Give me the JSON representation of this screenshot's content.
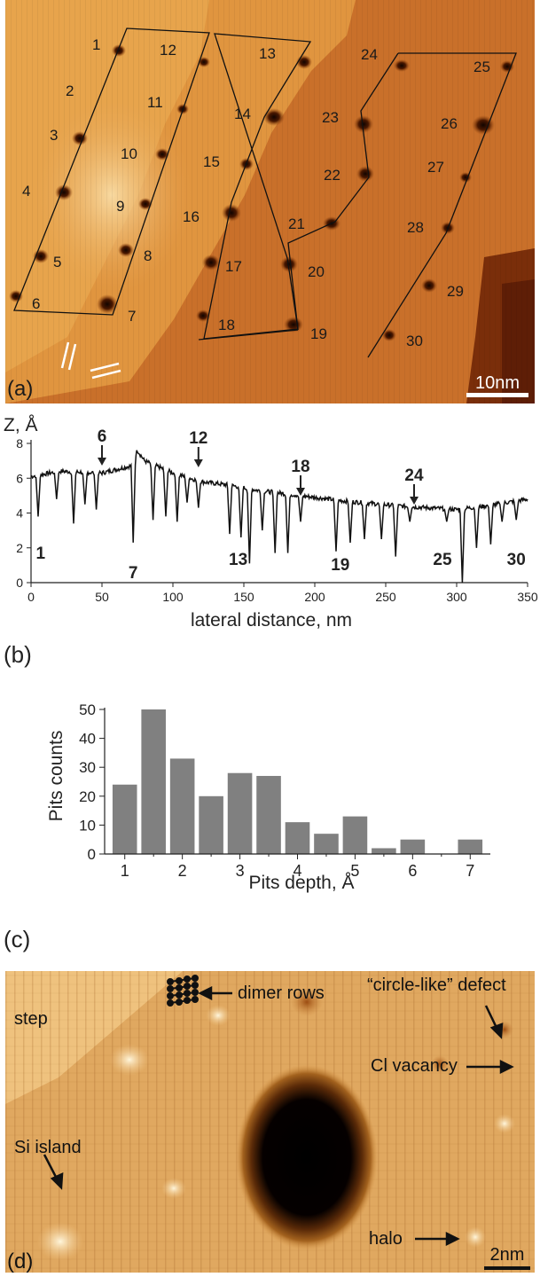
{
  "panel_a": {
    "label": "(a)",
    "scale_bar": "10nm",
    "pits": [
      "1",
      "2",
      "3",
      "4",
      "5",
      "6",
      "7",
      "8",
      "9",
      "10",
      "11",
      "12",
      "13",
      "14",
      "15",
      "16",
      "17",
      "18",
      "19",
      "20",
      "21",
      "22",
      "23",
      "24",
      "25",
      "26",
      "27",
      "28",
      "29",
      "30"
    ]
  },
  "panel_b": {
    "label": "(b)",
    "ylabel": "Z, Å",
    "xlabel": "lateral distance, nm",
    "arrow_labels": [
      "6",
      "12",
      "18",
      "24"
    ],
    "pit_labels": [
      "1",
      "7",
      "13",
      "19",
      "25",
      "30"
    ]
  },
  "panel_c": {
    "label": "(c)"
  },
  "panel_d": {
    "label": "(d)",
    "scale_bar": "2nm",
    "annotations": {
      "step": "step",
      "dimer_rows": "dimer rows",
      "circle_defect": "“circle-like” defect",
      "cl_vacancy": "Cl vacancy",
      "si_island": "Si island",
      "halo": "halo"
    }
  },
  "chart_data": [
    {
      "type": "line",
      "xlabel": "lateral distance, nm",
      "ylabel": "Z, Å",
      "xlim": [
        0,
        350
      ],
      "ylim": [
        0,
        8
      ],
      "xticks": [
        0,
        50,
        100,
        150,
        200,
        250,
        300,
        350
      ],
      "yticks": [
        0,
        2,
        4,
        6,
        8
      ],
      "x": [
        0,
        5,
        10,
        20,
        30,
        40,
        50,
        60,
        70,
        72,
        75,
        80,
        90,
        100,
        110,
        118,
        130,
        140,
        150,
        155,
        160,
        170,
        180,
        190,
        200,
        210,
        215,
        220,
        230,
        240,
        250,
        260,
        270,
        280,
        290,
        300,
        304,
        310,
        320,
        330,
        340,
        350
      ],
      "y": [
        6.1,
        4.0,
        6.3,
        6.5,
        3.5,
        6.6,
        6.3,
        6.5,
        6.8,
        2.3,
        7.8,
        7.2,
        6.6,
        6.3,
        6.0,
        5.8,
        5.8,
        5.7,
        5.5,
        1.2,
        5.3,
        5.2,
        5.1,
        5.0,
        4.9,
        4.8,
        1.8,
        4.7,
        4.6,
        4.5,
        4.5,
        4.4,
        4.3,
        4.3,
        4.3,
        4.2,
        0.0,
        4.3,
        4.4,
        4.5,
        4.6,
        4.8
      ],
      "dips": [
        {
          "x": 5,
          "y": 3.8
        },
        {
          "x": 18,
          "y": 4.8
        },
        {
          "x": 30,
          "y": 3.4
        },
        {
          "x": 38,
          "y": 4.5
        },
        {
          "x": 46,
          "y": 4.2
        },
        {
          "x": 72,
          "y": 2.3
        },
        {
          "x": 86,
          "y": 3.6
        },
        {
          "x": 95,
          "y": 3.8
        },
        {
          "x": 103,
          "y": 3.5
        },
        {
          "x": 110,
          "y": 4.6
        },
        {
          "x": 118,
          "y": 4.3
        },
        {
          "x": 140,
          "y": 2.8
        },
        {
          "x": 148,
          "y": 2.6
        },
        {
          "x": 154,
          "y": 1.1
        },
        {
          "x": 163,
          "y": 3.0
        },
        {
          "x": 172,
          "y": 1.7
        },
        {
          "x": 181,
          "y": 1.7
        },
        {
          "x": 190,
          "y": 3.5
        },
        {
          "x": 215,
          "y": 1.8
        },
        {
          "x": 225,
          "y": 2.3
        },
        {
          "x": 235,
          "y": 2.5
        },
        {
          "x": 247,
          "y": 2.5
        },
        {
          "x": 257,
          "y": 1.5
        },
        {
          "x": 267,
          "y": 3.5
        },
        {
          "x": 293,
          "y": 3.5
        },
        {
          "x": 304,
          "y": 0.0
        },
        {
          "x": 314,
          "y": 2.0
        },
        {
          "x": 324,
          "y": 2.2
        },
        {
          "x": 332,
          "y": 3.5
        },
        {
          "x": 342,
          "y": 3.6
        }
      ]
    },
    {
      "type": "bar",
      "xlabel": "Pits depth, Å",
      "ylabel": "Pits counts",
      "xlim": [
        0.65,
        7.35
      ],
      "ylim": [
        0,
        50
      ],
      "xticks": [
        1,
        2,
        3,
        4,
        5,
        6,
        7
      ],
      "yticks": [
        0,
        10,
        20,
        30,
        40,
        50
      ],
      "x": [
        1.0,
        1.5,
        2.0,
        2.5,
        3.0,
        3.5,
        4.0,
        4.5,
        5.0,
        5.5,
        6.0,
        6.5,
        7.0
      ],
      "values": [
        24,
        50,
        33,
        20,
        28,
        27,
        11,
        7,
        13,
        2,
        5,
        0,
        5
      ],
      "color": "#808080"
    }
  ]
}
